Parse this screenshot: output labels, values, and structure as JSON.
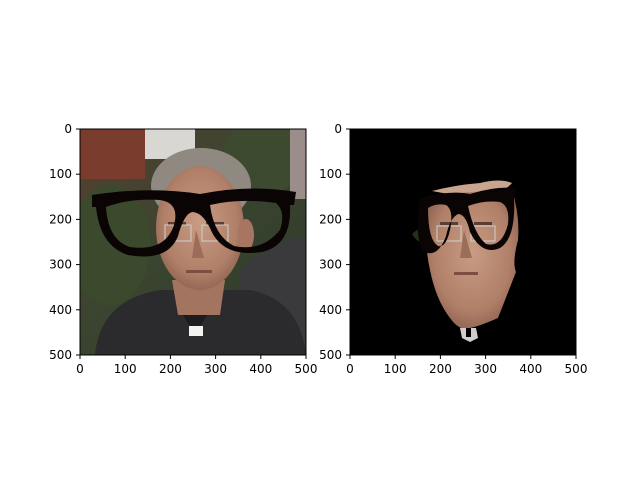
{
  "chart_data": [
    {
      "type": "image",
      "panel": "left",
      "content": "photo",
      "x_ticks": [
        0,
        100,
        200,
        300,
        400,
        500
      ],
      "y_ticks": [
        0,
        100,
        200,
        300,
        400,
        500
      ],
      "xlim": [
        0,
        500
      ],
      "ylim": [
        500,
        0
      ],
      "overlay": "black-eyeglasses",
      "colors": {
        "frame": "#0a0404",
        "background": "#3e4430",
        "skin": "#b98c74",
        "suit": "#2b2a2c"
      }
    },
    {
      "type": "image",
      "panel": "right",
      "content": "masked-face",
      "x_ticks": [
        0,
        100,
        200,
        300,
        400,
        500
      ],
      "y_ticks": [
        0,
        100,
        200,
        300,
        400,
        500
      ],
      "xlim": [
        0,
        500
      ],
      "ylim": [
        500,
        0
      ],
      "overlay": "black-eyeglasses",
      "colors": {
        "frame": "#0a0404",
        "background": "#000000",
        "skin": "#b98c74"
      }
    }
  ]
}
